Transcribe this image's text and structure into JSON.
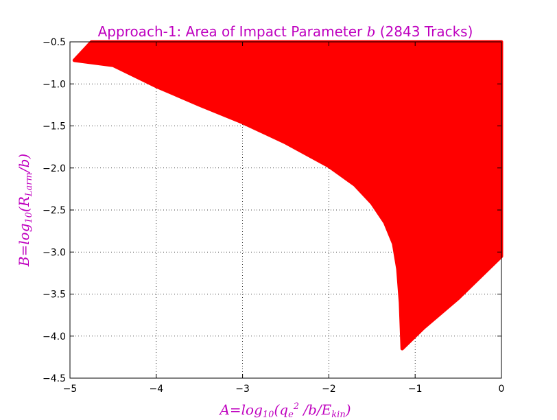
{
  "chart_data": {
    "type": "scatter",
    "title": "Approach-1: Area of Impact Parameter b (2843 Tracks)",
    "title_prefix": "Approach-1: Area of Impact Parameter ",
    "title_var": "b",
    "title_suffix": " (2843 Tracks)",
    "xlabel": "A=log10(qe2 /b/Ekin)",
    "ylabel": "B=log10(RLarm/b)",
    "xlim": [
      -5,
      0
    ],
    "ylim": [
      -4.5,
      -0.5
    ],
    "x_ticks": [
      -5,
      -4,
      -3,
      -2,
      -1,
      0
    ],
    "y_ticks": [
      -0.5,
      -1.0,
      -1.5,
      -2.0,
      -2.5,
      -3.0,
      -3.5,
      -4.0,
      -4.5
    ],
    "x_tick_labels": [
      "−5",
      "−4",
      "−3",
      "−2",
      "−1",
      "0"
    ],
    "y_tick_labels": [
      "−0.5",
      "−1.0",
      "−1.5",
      "−2.0",
      "−2.5",
      "−3.0",
      "−3.5",
      "−4.0",
      "−4.5"
    ],
    "grid": true,
    "series": [
      {
        "color": "#ff0000",
        "region_boundary": [
          [
            -4.95,
            -0.72
          ],
          [
            -4.5,
            -0.78
          ],
          [
            -4.0,
            -1.03
          ],
          [
            -3.5,
            -1.25
          ],
          [
            -3.0,
            -1.46
          ],
          [
            -2.5,
            -1.7
          ],
          [
            -2.0,
            -1.98
          ],
          [
            -1.7,
            -2.2
          ],
          [
            -1.5,
            -2.42
          ],
          [
            -1.35,
            -2.65
          ],
          [
            -1.25,
            -2.9
          ],
          [
            -1.2,
            -3.2
          ],
          [
            -1.17,
            -3.6
          ],
          [
            -1.15,
            -4.15
          ],
          [
            -0.9,
            -3.9
          ],
          [
            -0.5,
            -3.55
          ],
          [
            0.0,
            -3.05
          ],
          [
            0.0,
            -0.5
          ],
          [
            -4.75,
            -0.5
          ]
        ]
      }
    ]
  },
  "colors": {
    "title": "#bf00bf",
    "axis_label": "#bf00bf",
    "fill": "#ff0000"
  }
}
